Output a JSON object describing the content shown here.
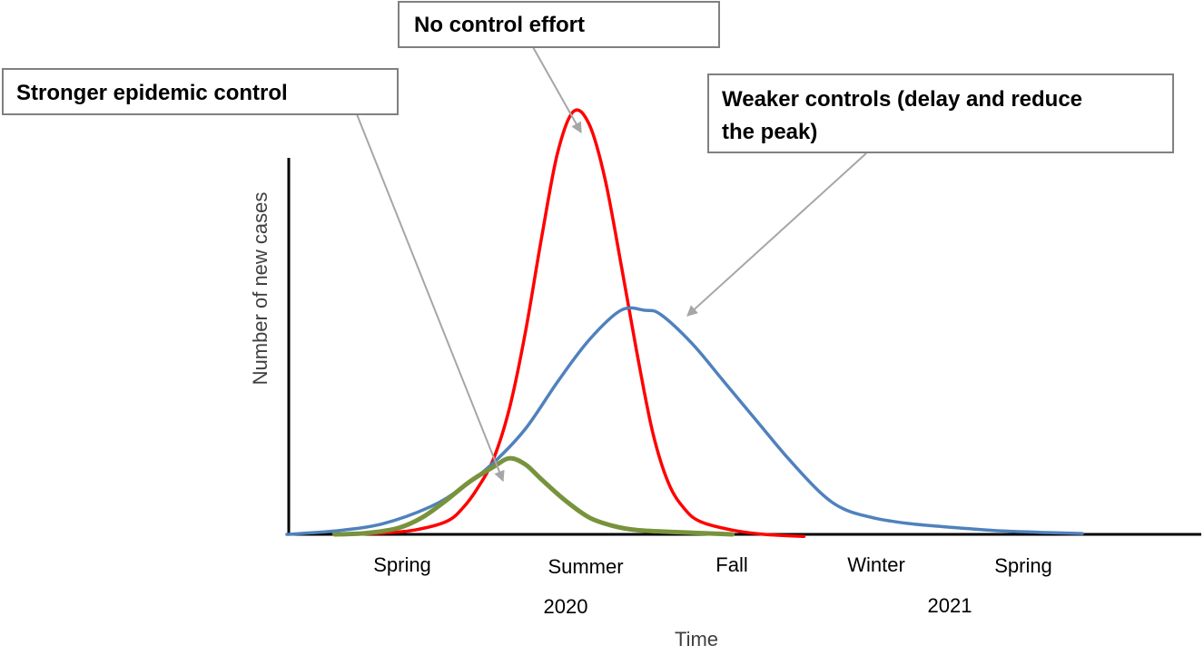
{
  "chart_data": {
    "type": "line",
    "xlabel": "Time",
    "ylabel": "Number of new cases",
    "x_ticks": [
      "Spring",
      "Summer",
      "Fall",
      "Winter",
      "Spring"
    ],
    "year_labels": [
      "2020",
      "2021"
    ],
    "x_range": [
      0,
      100
    ],
    "y_range": [
      0,
      100
    ],
    "grid": false,
    "series": [
      {
        "color": "#ff0000",
        "x": [
          8,
          12,
          16,
          20,
          22,
          24,
          26,
          28,
          30,
          32,
          34,
          36,
          38,
          40,
          42,
          44,
          46,
          48,
          50,
          52,
          56,
          60,
          65
        ],
        "y": [
          0,
          0.3,
          1,
          3,
          6,
          11,
          18,
          30,
          48,
          70,
          90,
          100,
          97,
          84,
          64,
          43,
          24,
          12,
          6,
          3,
          1,
          0,
          -0.5
        ]
      },
      {
        "color": "#4f81bd",
        "x": [
          0,
          6,
          12,
          18,
          22,
          26,
          30,
          34,
          38,
          42,
          45,
          47,
          51,
          55,
          59,
          63,
          67,
          70,
          74,
          78,
          82,
          86,
          90,
          96,
          100
        ],
        "y": [
          0,
          0.8,
          2.5,
          6.5,
          11,
          17,
          25,
          36,
          46,
          53,
          53,
          52,
          45,
          36,
          27,
          18,
          10,
          6,
          3.8,
          2.6,
          1.9,
          1.3,
          0.8,
          0.4,
          0.2
        ]
      },
      {
        "color": "#77933c",
        "x": [
          6,
          10,
          14,
          17,
          20,
          23,
          26,
          28,
          30,
          32,
          35,
          38,
          41,
          44,
          48,
          52,
          56
        ],
        "y": [
          0,
          0.3,
          1.5,
          4,
          8,
          12.5,
          16,
          18,
          16.5,
          13,
          8,
          4,
          2,
          1,
          0.6,
          0.3,
          0
        ]
      }
    ],
    "annotations": [
      {
        "text": "No control effort"
      },
      {
        "text": "Stronger epidemic control"
      },
      {
        "text_lines": [
          "Weaker controls (delay and reduce",
          "the peak)"
        ]
      }
    ]
  }
}
